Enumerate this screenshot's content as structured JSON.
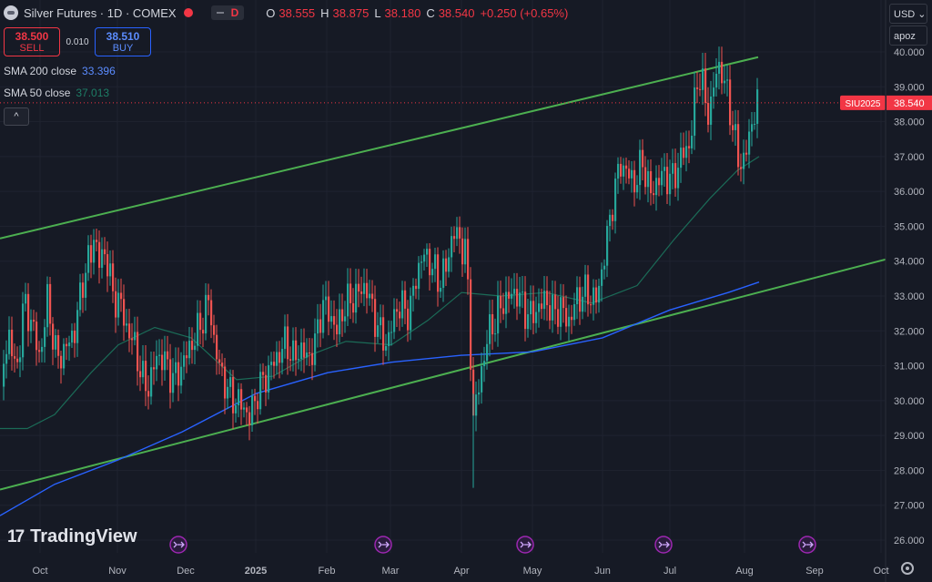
{
  "header": {
    "symbol_title": "Silver Futures · 1D · COMEX",
    "interval_badge": "D",
    "ohlc": {
      "o_label": "O",
      "o_value": "38.555",
      "h_label": "H",
      "h_value": "38.875",
      "l_label": "L",
      "l_value": "38.180",
      "c_label": "C",
      "c_value": "38.540",
      "change": "+0.250 (+0.65%)"
    }
  },
  "trade": {
    "sell_price": "38.500",
    "sell_label": "SELL",
    "spread": "0.010",
    "buy_price": "38.510",
    "buy_label": "BUY"
  },
  "indicators": [
    {
      "label": "SMA 200 close",
      "value": "33.396",
      "color": "#2962ff"
    },
    {
      "label": "SMA 50 close",
      "value": "37.013",
      "color": "#1b6b57"
    }
  ],
  "collapse_button": "^",
  "currency_button": "USD",
  "scale_button": "apoz",
  "branding": {
    "logo_mark": "17",
    "name": "TradingView"
  },
  "colors": {
    "background": "#161a25",
    "up": "#26a69a",
    "down": "#ef5350",
    "trendline": "#4caf50",
    "sma200": "#2962ff",
    "sma50": "#1b6b57",
    "event_marker": "#9c27b0"
  },
  "chart_data": {
    "type": "candlestick",
    "title": "Silver Futures · 1D · COMEX",
    "y_axis_ticks": [
      "40.000",
      "39.000",
      "38.000",
      "37.000",
      "36.000",
      "35.000",
      "34.000",
      "33.000",
      "32.000",
      "31.000",
      "30.000",
      "29.000",
      "28.000",
      "27.000",
      "26.000"
    ],
    "ylim": [
      25.5,
      40.5
    ],
    "x_axis_ticks": [
      "Oct",
      "Nov",
      "Dec",
      "2025",
      "Feb",
      "Mar",
      "Apr",
      "May",
      "Jun",
      "Jul",
      "Aug",
      "Sep",
      "Oct"
    ],
    "last_price": {
      "label": "SIU2025",
      "value": "38.540"
    },
    "event_markers": [
      "Dec",
      "Mar",
      "May",
      "Jul",
      "Sep"
    ],
    "series": [
      {
        "name": "SMA 200 close",
        "last": 33.396
      },
      {
        "name": "SMA 50 close",
        "last": 37.013
      }
    ]
  }
}
